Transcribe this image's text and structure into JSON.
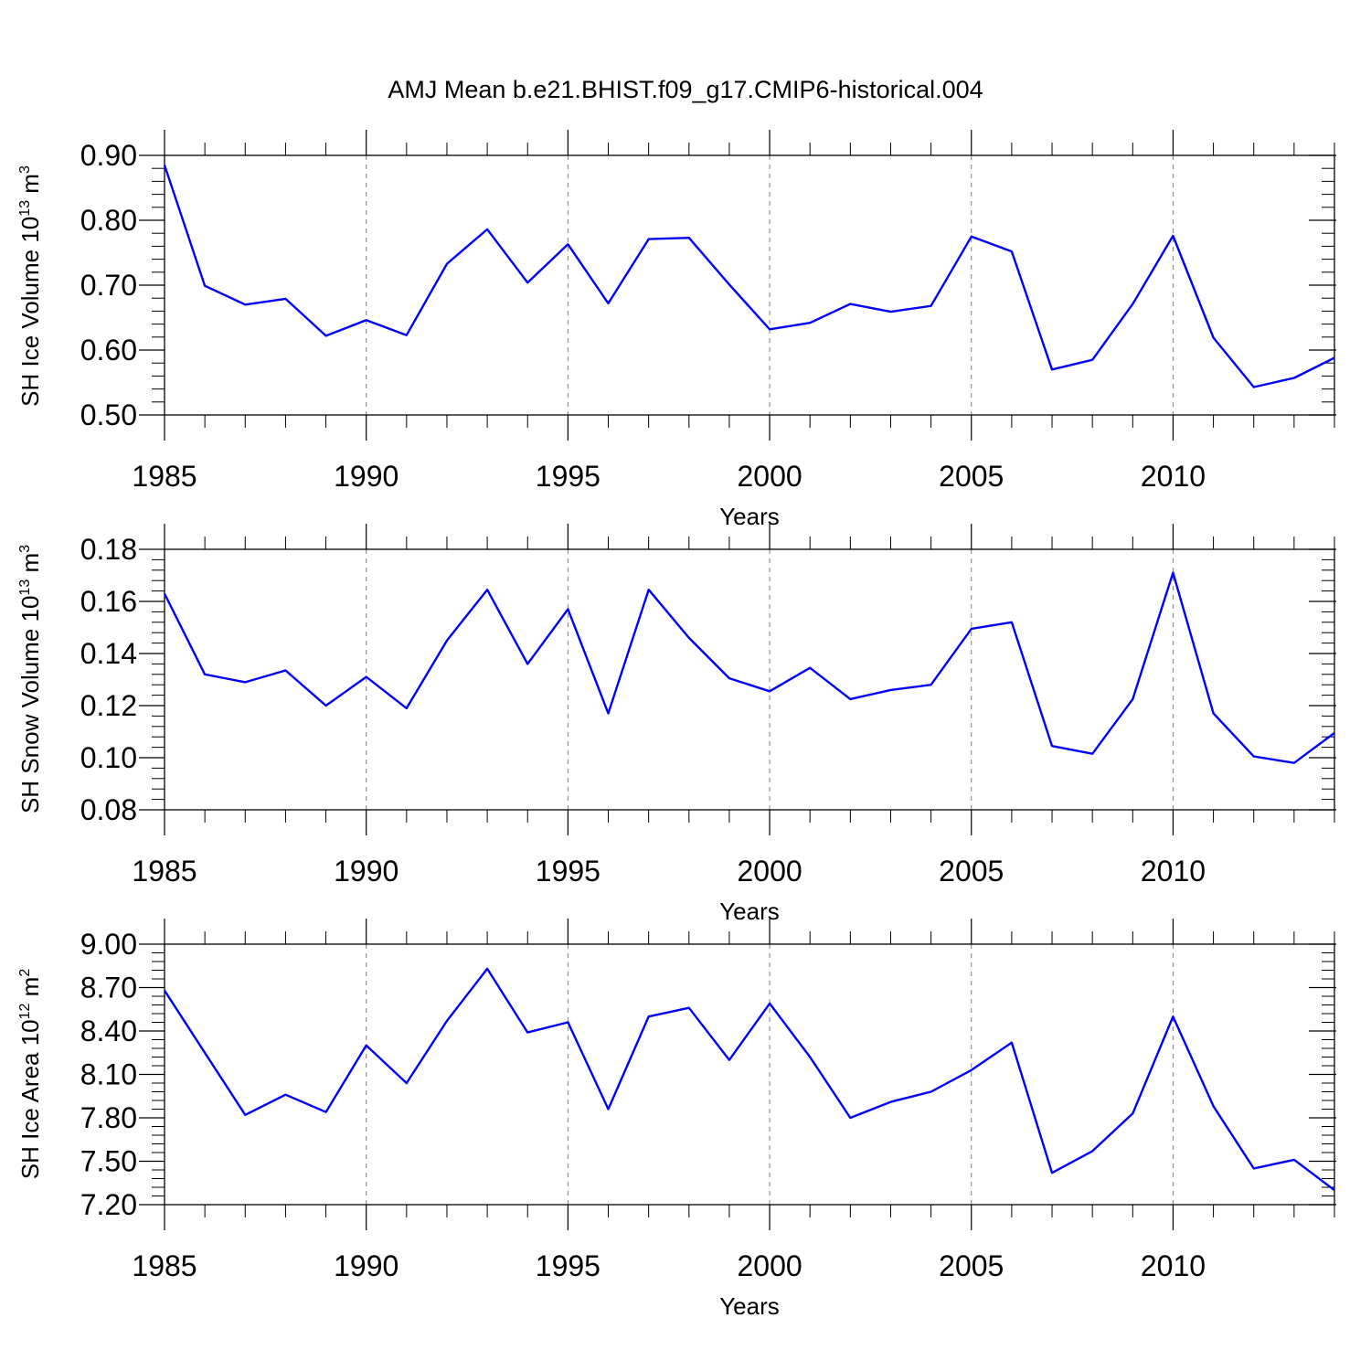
{
  "figure": {
    "title": "AMJ Mean b.e21.BHIST.f09_g17.CMIP6-historical.004"
  },
  "chart_data": [
    {
      "type": "line",
      "ylabel": {
        "main": "SH Ice Volume 10",
        "exp": "13",
        "unit": " m",
        "unit_exp": "3"
      },
      "xlabel": "Years",
      "xlim": [
        1985,
        2014
      ],
      "ylim": [
        0.5,
        0.9
      ],
      "yticks": [
        0.5,
        0.6,
        0.7,
        0.8,
        0.9
      ],
      "ytick_labels": [
        "0.50",
        "0.60",
        "0.70",
        "0.80",
        "0.90"
      ],
      "xticks": [
        1985,
        1990,
        1995,
        2000,
        2005,
        2010
      ],
      "xtick_labels": [
        "1985",
        "1990",
        "1995",
        "2000",
        "2005",
        "2010"
      ],
      "grid": "dashed vertical at major x ticks",
      "series": [
        {
          "color": "#0000ff",
          "x": [
            1985,
            1986,
            1987,
            1988,
            1989,
            1990,
            1991,
            1992,
            1993,
            1994,
            1995,
            1996,
            1997,
            1998,
            1999,
            2000,
            2001,
            2002,
            2003,
            2004,
            2005,
            2006,
            2007,
            2008,
            2009,
            2010,
            2011,
            2012,
            2013,
            2014
          ],
          "y": [
            0.885,
            0.699,
            0.67,
            0.679,
            0.622,
            0.646,
            0.623,
            0.733,
            0.786,
            0.704,
            0.763,
            0.672,
            0.771,
            0.773,
            0.701,
            0.632,
            0.642,
            0.671,
            0.659,
            0.668,
            0.775,
            0.752,
            0.57,
            0.585,
            0.671,
            0.776,
            0.619,
            0.543,
            0.557,
            0.588
          ]
        }
      ]
    },
    {
      "type": "line",
      "ylabel": {
        "main": "SH Snow Volume 10",
        "exp": "13",
        "unit": " m",
        "unit_exp": "3"
      },
      "xlabel": "Years",
      "xlim": [
        1985,
        2014
      ],
      "ylim": [
        0.08,
        0.18
      ],
      "yticks": [
        0.08,
        0.1,
        0.12,
        0.14,
        0.16,
        0.18
      ],
      "ytick_labels": [
        "0.08",
        "0.10",
        "0.12",
        "0.14",
        "0.16",
        "0.18"
      ],
      "xticks": [
        1985,
        1990,
        1995,
        2000,
        2005,
        2010
      ],
      "xtick_labels": [
        "1985",
        "1990",
        "1995",
        "2000",
        "2005",
        "2010"
      ],
      "grid": "dashed vertical at major x ticks",
      "series": [
        {
          "color": "#0000ff",
          "x": [
            1985,
            1986,
            1987,
            1988,
            1989,
            1990,
            1991,
            1992,
            1993,
            1994,
            1995,
            1996,
            1997,
            1998,
            1999,
            2000,
            2001,
            2002,
            2003,
            2004,
            2005,
            2006,
            2007,
            2008,
            2009,
            2010,
            2011,
            2012,
            2013,
            2014
          ],
          "y": [
            0.163,
            0.132,
            0.129,
            0.1335,
            0.12,
            0.131,
            0.119,
            0.145,
            0.1645,
            0.136,
            0.157,
            0.117,
            0.1645,
            0.146,
            0.1305,
            0.1255,
            0.1345,
            0.1225,
            0.126,
            0.128,
            0.1495,
            0.152,
            0.1045,
            0.1015,
            0.1225,
            0.171,
            0.117,
            0.1005,
            0.098,
            0.1095
          ]
        }
      ]
    },
    {
      "type": "line",
      "ylabel": {
        "main": "SH Ice Area 10",
        "exp": "12",
        "unit": " m",
        "unit_exp": "2"
      },
      "xlabel": "Years",
      "xlim": [
        1985,
        2014
      ],
      "ylim": [
        7.2,
        9.0
      ],
      "yticks": [
        7.2,
        7.5,
        7.8,
        8.1,
        8.4,
        8.7,
        9.0
      ],
      "ytick_labels": [
        "7.20",
        "7.50",
        "7.80",
        "8.10",
        "8.40",
        "8.70",
        "9.00"
      ],
      "xticks": [
        1985,
        1990,
        1995,
        2000,
        2005,
        2010
      ],
      "xtick_labels": [
        "1985",
        "1990",
        "1995",
        "2000",
        "2005",
        "2010"
      ],
      "grid": "dashed vertical at major x ticks",
      "series": [
        {
          "color": "#0000ff",
          "x": [
            1985,
            1986,
            1987,
            1988,
            1989,
            1990,
            1991,
            1992,
            1993,
            1994,
            1995,
            1996,
            1997,
            1998,
            1999,
            2000,
            2001,
            2002,
            2003,
            2004,
            2005,
            2006,
            2007,
            2008,
            2009,
            2010,
            2011,
            2012,
            2013,
            2014
          ],
          "y": [
            8.68,
            8.25,
            7.82,
            7.96,
            7.84,
            8.3,
            8.04,
            8.47,
            8.83,
            8.39,
            8.46,
            7.86,
            8.5,
            8.56,
            8.2,
            8.59,
            8.22,
            7.8,
            7.91,
            7.98,
            8.13,
            8.32,
            7.42,
            7.57,
            7.83,
            8.5,
            7.88,
            7.45,
            7.51,
            7.3
          ]
        }
      ]
    }
  ]
}
